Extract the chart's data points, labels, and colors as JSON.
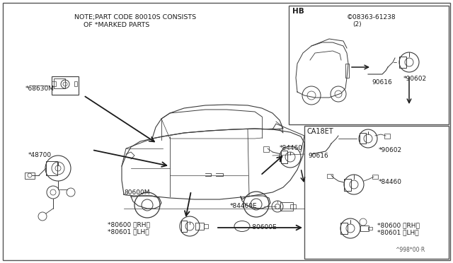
{
  "bg_color": "#ffffff",
  "note_text1": "NOTE;PART CODE 80010S CONSISTS",
  "note_text2": "OF *MARKED PARTS",
  "watermark": "^998*00·R",
  "hb_label": "HB",
  "ca_label": "CA18ET",
  "part_s08363": "©08363-61238",
  "part_s08363_2": "(2)",
  "labels_left": {
    "68630M": "*68630M",
    "48700": "*48700",
    "80600M": "80600M",
    "80600rh": "*80600 〈RH〉",
    "80601lh": "*80601 〈LH〉",
    "80600E": "-80600E",
    "84460E": "*84460E",
    "84460": "*84460"
  },
  "labels_hb": {
    "90616": "90616",
    "90602": "*90602"
  },
  "labels_ca": {
    "90616": "90616",
    "90602": "*90602",
    "84460": "*84460",
    "80600rh": "*80600 〈RH〉",
    "80601lh": "*80601 〈LH〉"
  },
  "line_color": "#3a3a3a",
  "arrow_color": "#1a1a1a",
  "box_color": "#cccccc"
}
